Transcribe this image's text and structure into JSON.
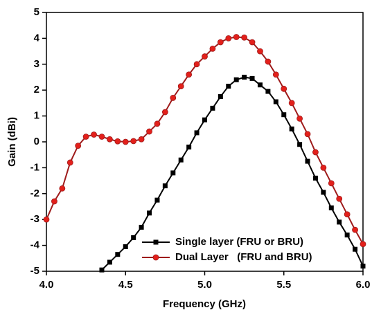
{
  "chart_data": {
    "type": "line",
    "xlabel": "Frequency (GHz)",
    "ylabel": "Gain (dBi)",
    "xlim": [
      4.0,
      6.0
    ],
    "xticks": [
      {
        "value": 4.0,
        "label": "4.0"
      },
      {
        "value": 4.5,
        "label": "4.5"
      },
      {
        "value": 5.0,
        "label": "5.0"
      },
      {
        "value": 5.5,
        "label": "5.5"
      },
      {
        "value": 6.0,
        "label": "6.0"
      }
    ],
    "ylim": [
      -5,
      5
    ],
    "yticks": [
      -5,
      -4,
      -3,
      -2,
      -1,
      0,
      1,
      2,
      3,
      4,
      5
    ],
    "legend": "lower right",
    "series": [
      {
        "name": "Single layer (FRU or BRU)",
        "color": "#000000",
        "marker": "square",
        "marker_color": "#000000",
        "x": [
          4.35,
          4.4,
          4.45,
          4.5,
          4.55,
          4.6,
          4.65,
          4.7,
          4.75,
          4.8,
          4.85,
          4.9,
          4.95,
          5.0,
          5.05,
          5.1,
          5.15,
          5.2,
          5.25,
          5.3,
          5.35,
          5.4,
          5.45,
          5.5,
          5.55,
          5.6,
          5.65,
          5.7,
          5.75,
          5.8,
          5.85,
          5.9,
          5.95,
          6.0
        ],
        "values": [
          -4.95,
          -4.65,
          -4.35,
          -4.05,
          -3.7,
          -3.3,
          -2.75,
          -2.25,
          -1.7,
          -1.2,
          -0.7,
          -0.2,
          0.35,
          0.85,
          1.3,
          1.75,
          2.15,
          2.4,
          2.5,
          2.45,
          2.2,
          1.95,
          1.55,
          1.05,
          0.5,
          -0.1,
          -0.75,
          -1.4,
          -1.95,
          -2.55,
          -3.1,
          -3.6,
          -4.15,
          -4.8
        ]
      },
      {
        "name": "Dual Layer   (FRU and BRU)",
        "color": "#9e1b1b",
        "marker": "circle",
        "marker_color": "#e3201b",
        "x": [
          4.0,
          4.05,
          4.1,
          4.15,
          4.2,
          4.25,
          4.3,
          4.35,
          4.4,
          4.45,
          4.5,
          4.55,
          4.6,
          4.65,
          4.7,
          4.75,
          4.8,
          4.85,
          4.9,
          4.95,
          5.0,
          5.05,
          5.1,
          5.15,
          5.2,
          5.25,
          5.3,
          5.35,
          5.4,
          5.45,
          5.5,
          5.55,
          5.6,
          5.65,
          5.7,
          5.75,
          5.8,
          5.85,
          5.9,
          5.95,
          6.0
        ],
        "values": [
          -3.0,
          -2.3,
          -1.8,
          -0.8,
          -0.15,
          0.2,
          0.28,
          0.2,
          0.1,
          0.02,
          0.0,
          0.03,
          0.1,
          0.4,
          0.7,
          1.15,
          1.7,
          2.15,
          2.6,
          3.0,
          3.3,
          3.6,
          3.85,
          4.0,
          4.05,
          4.03,
          3.85,
          3.5,
          3.1,
          2.6,
          2.05,
          1.5,
          0.9,
          0.3,
          -0.4,
          -1.0,
          -1.6,
          -2.2,
          -2.8,
          -3.4,
          -3.95
        ]
      }
    ]
  }
}
